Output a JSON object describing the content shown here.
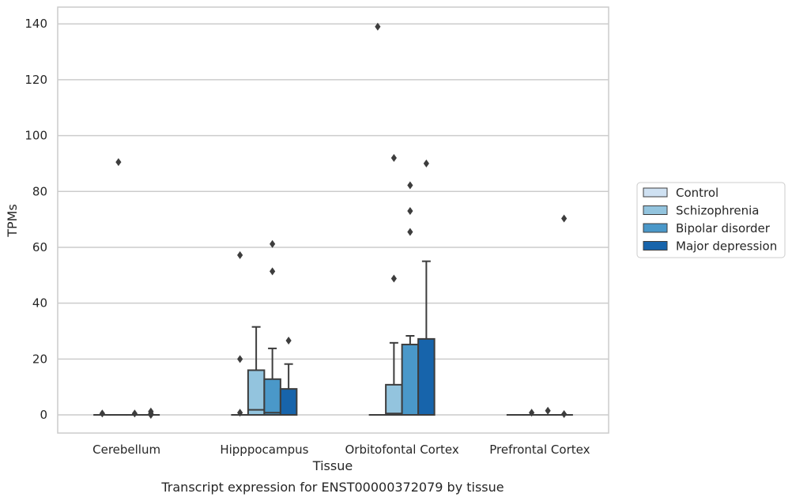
{
  "chart_data": {
    "type": "box",
    "title": "",
    "caption": "Transcript expression for ENST00000372079 by tissue",
    "xlabel": "Tissue",
    "ylabel": "TPMs",
    "ylim": [
      -6.5,
      146
    ],
    "yticks": [
      0,
      20,
      40,
      60,
      80,
      100,
      120,
      140
    ],
    "grid": "horizontal",
    "legend_position": "right",
    "categories": [
      "Cerebellum",
      "Hipppocampus",
      "Orbitofontal Cortex",
      "Prefrontal Cortex"
    ],
    "series": [
      {
        "name": "Control",
        "color": "#cfe1f2"
      },
      {
        "name": "Schizophrenia",
        "color": "#93c4de"
      },
      {
        "name": "Bipolar disorder",
        "color": "#4a98c9"
      },
      {
        "name": "Major depression",
        "color": "#1764ab"
      }
    ],
    "boxes": [
      [
        {
          "q1": 0,
          "median": 0,
          "q3": 0,
          "whislo": 0,
          "whishi": 0,
          "fliers": [
            0.5
          ]
        },
        {
          "q1": 0,
          "median": 0,
          "q3": 0,
          "whislo": 0,
          "whishi": 0,
          "fliers": [
            90.5
          ]
        },
        {
          "q1": 0,
          "median": 0,
          "q3": 0,
          "whislo": 0,
          "whishi": 0,
          "fliers": [
            0.5
          ]
        },
        {
          "q1": 0,
          "median": 0,
          "q3": 0,
          "whislo": 0,
          "whishi": 0,
          "fliers": [
            0,
            0.5,
            1.2
          ]
        }
      ],
      [
        {
          "q1": 0,
          "median": 0,
          "q3": 0,
          "whislo": 0,
          "whishi": 0,
          "fliers": [
            0.8,
            20,
            57.2
          ]
        },
        {
          "q1": 0,
          "median": 1.8,
          "q3": 16,
          "whislo": 0,
          "whishi": 31.5,
          "fliers": []
        },
        {
          "q1": 0,
          "median": 0.8,
          "q3": 12.8,
          "whislo": 0,
          "whishi": 23.8,
          "fliers": [
            51.4,
            61.2
          ]
        },
        {
          "q1": 0,
          "median": 0,
          "q3": 9.3,
          "whislo": 0,
          "whishi": 18.2,
          "fliers": [
            26.6
          ]
        }
      ],
      [
        {
          "q1": 0,
          "median": 0,
          "q3": 0,
          "whislo": 0,
          "whishi": 0,
          "fliers": [
            139
          ]
        },
        {
          "q1": 0,
          "median": 0.5,
          "q3": 10.8,
          "whislo": 0,
          "whishi": 25.8,
          "fliers": [
            48.8,
            92
          ]
        },
        {
          "q1": 0,
          "median": 0,
          "q3": 25.2,
          "whislo": 0,
          "whishi": 28.3,
          "fliers": [
            65.5,
            73,
            82.2
          ]
        },
        {
          "q1": 0,
          "median": 0,
          "q3": 27.2,
          "whislo": 0,
          "whishi": 55,
          "fliers": [
            90
          ]
        }
      ],
      [
        {
          "q1": 0,
          "median": 0,
          "q3": 0,
          "whislo": 0,
          "whishi": 0,
          "fliers": []
        },
        {
          "q1": 0,
          "median": 0,
          "q3": 0,
          "whislo": 0,
          "whishi": 0,
          "fliers": [
            0.8
          ]
        },
        {
          "q1": 0,
          "median": 0,
          "q3": 0,
          "whislo": 0,
          "whishi": 0,
          "fliers": [
            1.5
          ]
        },
        {
          "q1": 0,
          "median": 0,
          "q3": 0,
          "whislo": 0,
          "whishi": 0,
          "fliers": [
            0.3,
            70.3
          ]
        }
      ]
    ]
  }
}
